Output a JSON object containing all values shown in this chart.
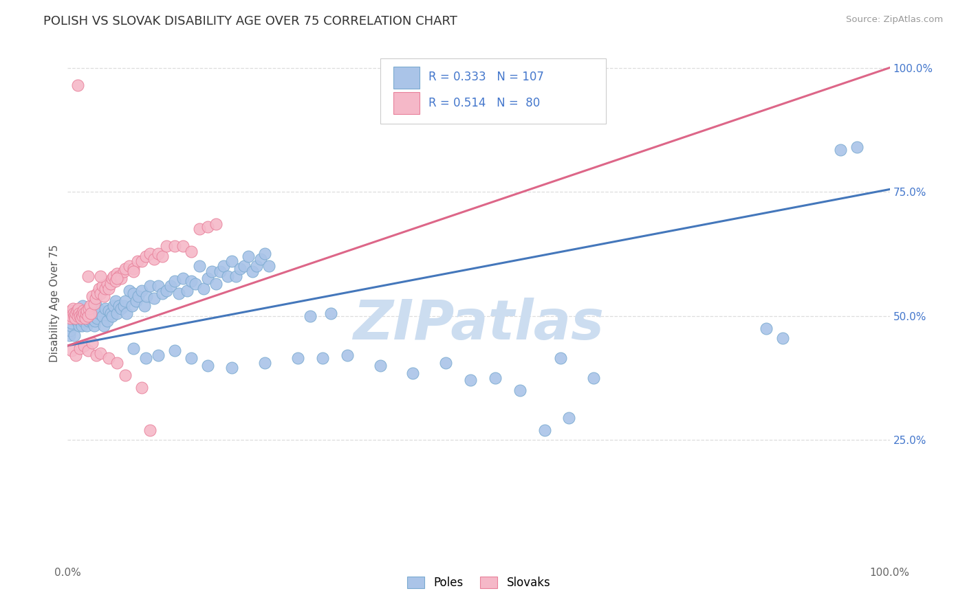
{
  "title": "POLISH VS SLOVAK DISABILITY AGE OVER 75 CORRELATION CHART",
  "source": "Source: ZipAtlas.com",
  "ylabel": "Disability Age Over 75",
  "poles_R": 0.333,
  "poles_N": 107,
  "slovaks_R": 0.514,
  "slovaks_N": 80,
  "poles_color": "#aac4e8",
  "slovaks_color": "#f5b8c8",
  "poles_edge_color": "#7aaad0",
  "slovaks_edge_color": "#e8809a",
  "poles_line_color": "#4477bb",
  "slovaks_line_color": "#dd6688",
  "title_color": "#333333",
  "right_axis_color": "#4477cc",
  "watermark_color": "#ccddf0",
  "background_color": "#ffffff",
  "grid_color": "#dddddd",
  "poles_trendline": [
    0.0,
    0.44,
    1.0,
    0.755
  ],
  "slovaks_trendline": [
    0.0,
    0.44,
    1.0,
    1.0
  ],
  "xlim": [
    0.0,
    1.0
  ],
  "ylim": [
    0.0,
    1.05
  ],
  "ytick_positions": [
    0.0,
    0.25,
    0.5,
    0.75,
    1.0
  ],
  "right_ytick_labels": [
    "",
    "25.0%",
    "50.0%",
    "75.0%",
    "100.0%"
  ],
  "xtick_positions": [
    0.0,
    1.0
  ],
  "xtick_labels": [
    "0.0%",
    "100.0%"
  ],
  "poles_scatter": [
    [
      0.002,
      0.46
    ],
    [
      0.003,
      0.47
    ],
    [
      0.004,
      0.48
    ],
    [
      0.005,
      0.485
    ],
    [
      0.006,
      0.5
    ],
    [
      0.007,
      0.495
    ],
    [
      0.008,
      0.46
    ],
    [
      0.009,
      0.51
    ],
    [
      0.01,
      0.505
    ],
    [
      0.011,
      0.49
    ],
    [
      0.012,
      0.5
    ],
    [
      0.013,
      0.51
    ],
    [
      0.014,
      0.48
    ],
    [
      0.015,
      0.49
    ],
    [
      0.016,
      0.5
    ],
    [
      0.017,
      0.48
    ],
    [
      0.018,
      0.52
    ],
    [
      0.019,
      0.49
    ],
    [
      0.02,
      0.5
    ],
    [
      0.021,
      0.51
    ],
    [
      0.022,
      0.495
    ],
    [
      0.023,
      0.48
    ],
    [
      0.025,
      0.505
    ],
    [
      0.026,
      0.49
    ],
    [
      0.027,
      0.5
    ],
    [
      0.028,
      0.51
    ],
    [
      0.029,
      0.49
    ],
    [
      0.03,
      0.505
    ],
    [
      0.032,
      0.48
    ],
    [
      0.033,
      0.49
    ],
    [
      0.034,
      0.5
    ],
    [
      0.035,
      0.52
    ],
    [
      0.036,
      0.495
    ],
    [
      0.038,
      0.505
    ],
    [
      0.04,
      0.51
    ],
    [
      0.042,
      0.5
    ],
    [
      0.044,
      0.48
    ],
    [
      0.046,
      0.515
    ],
    [
      0.048,
      0.49
    ],
    [
      0.05,
      0.51
    ],
    [
      0.052,
      0.505
    ],
    [
      0.054,
      0.5
    ],
    [
      0.056,
      0.52
    ],
    [
      0.058,
      0.53
    ],
    [
      0.06,
      0.505
    ],
    [
      0.062,
      0.52
    ],
    [
      0.065,
      0.515
    ],
    [
      0.068,
      0.52
    ],
    [
      0.07,
      0.53
    ],
    [
      0.072,
      0.505
    ],
    [
      0.075,
      0.55
    ],
    [
      0.078,
      0.52
    ],
    [
      0.08,
      0.545
    ],
    [
      0.083,
      0.53
    ],
    [
      0.086,
      0.54
    ],
    [
      0.09,
      0.55
    ],
    [
      0.093,
      0.52
    ],
    [
      0.096,
      0.54
    ],
    [
      0.1,
      0.56
    ],
    [
      0.105,
      0.535
    ],
    [
      0.11,
      0.56
    ],
    [
      0.115,
      0.545
    ],
    [
      0.12,
      0.55
    ],
    [
      0.125,
      0.56
    ],
    [
      0.13,
      0.57
    ],
    [
      0.135,
      0.545
    ],
    [
      0.14,
      0.575
    ],
    [
      0.145,
      0.55
    ],
    [
      0.15,
      0.57
    ],
    [
      0.155,
      0.565
    ],
    [
      0.16,
      0.6
    ],
    [
      0.165,
      0.555
    ],
    [
      0.17,
      0.575
    ],
    [
      0.175,
      0.59
    ],
    [
      0.18,
      0.565
    ],
    [
      0.185,
      0.59
    ],
    [
      0.19,
      0.6
    ],
    [
      0.195,
      0.58
    ],
    [
      0.2,
      0.61
    ],
    [
      0.205,
      0.58
    ],
    [
      0.21,
      0.595
    ],
    [
      0.215,
      0.6
    ],
    [
      0.22,
      0.62
    ],
    [
      0.225,
      0.59
    ],
    [
      0.23,
      0.6
    ],
    [
      0.235,
      0.615
    ],
    [
      0.24,
      0.625
    ],
    [
      0.245,
      0.6
    ],
    [
      0.08,
      0.435
    ],
    [
      0.095,
      0.415
    ],
    [
      0.11,
      0.42
    ],
    [
      0.13,
      0.43
    ],
    [
      0.15,
      0.415
    ],
    [
      0.17,
      0.4
    ],
    [
      0.2,
      0.395
    ],
    [
      0.24,
      0.405
    ],
    [
      0.28,
      0.415
    ],
    [
      0.31,
      0.415
    ],
    [
      0.34,
      0.42
    ],
    [
      0.38,
      0.4
    ],
    [
      0.42,
      0.385
    ],
    [
      0.46,
      0.405
    ],
    [
      0.49,
      0.37
    ],
    [
      0.52,
      0.375
    ],
    [
      0.55,
      0.35
    ],
    [
      0.6,
      0.415
    ],
    [
      0.64,
      0.375
    ],
    [
      0.58,
      0.27
    ],
    [
      0.61,
      0.295
    ],
    [
      0.85,
      0.475
    ],
    [
      0.87,
      0.455
    ],
    [
      0.96,
      0.84
    ],
    [
      0.94,
      0.835
    ],
    [
      0.295,
      0.5
    ],
    [
      0.32,
      0.505
    ]
  ],
  "slovaks_scatter": [
    [
      0.002,
      0.5
    ],
    [
      0.003,
      0.495
    ],
    [
      0.004,
      0.51
    ],
    [
      0.005,
      0.5
    ],
    [
      0.006,
      0.515
    ],
    [
      0.007,
      0.505
    ],
    [
      0.008,
      0.5
    ],
    [
      0.009,
      0.495
    ],
    [
      0.01,
      0.505
    ],
    [
      0.011,
      0.51
    ],
    [
      0.012,
      0.5
    ],
    [
      0.013,
      0.515
    ],
    [
      0.014,
      0.505
    ],
    [
      0.015,
      0.5
    ],
    [
      0.016,
      0.495
    ],
    [
      0.017,
      0.505
    ],
    [
      0.018,
      0.5
    ],
    [
      0.019,
      0.51
    ],
    [
      0.02,
      0.505
    ],
    [
      0.021,
      0.495
    ],
    [
      0.022,
      0.505
    ],
    [
      0.023,
      0.51
    ],
    [
      0.025,
      0.5
    ],
    [
      0.026,
      0.515
    ],
    [
      0.027,
      0.52
    ],
    [
      0.028,
      0.505
    ],
    [
      0.03,
      0.54
    ],
    [
      0.032,
      0.525
    ],
    [
      0.034,
      0.535
    ],
    [
      0.036,
      0.545
    ],
    [
      0.038,
      0.555
    ],
    [
      0.04,
      0.545
    ],
    [
      0.042,
      0.56
    ],
    [
      0.044,
      0.54
    ],
    [
      0.046,
      0.555
    ],
    [
      0.048,
      0.565
    ],
    [
      0.05,
      0.555
    ],
    [
      0.052,
      0.565
    ],
    [
      0.054,
      0.575
    ],
    [
      0.056,
      0.58
    ],
    [
      0.058,
      0.57
    ],
    [
      0.06,
      0.585
    ],
    [
      0.062,
      0.58
    ],
    [
      0.065,
      0.575
    ],
    [
      0.068,
      0.59
    ],
    [
      0.07,
      0.595
    ],
    [
      0.075,
      0.6
    ],
    [
      0.08,
      0.595
    ],
    [
      0.085,
      0.61
    ],
    [
      0.09,
      0.61
    ],
    [
      0.095,
      0.62
    ],
    [
      0.1,
      0.625
    ],
    [
      0.105,
      0.615
    ],
    [
      0.11,
      0.625
    ],
    [
      0.115,
      0.62
    ],
    [
      0.12,
      0.64
    ],
    [
      0.13,
      0.64
    ],
    [
      0.14,
      0.64
    ],
    [
      0.15,
      0.63
    ],
    [
      0.16,
      0.675
    ],
    [
      0.17,
      0.68
    ],
    [
      0.18,
      0.685
    ],
    [
      0.005,
      0.43
    ],
    [
      0.01,
      0.42
    ],
    [
      0.015,
      0.435
    ],
    [
      0.02,
      0.44
    ],
    [
      0.025,
      0.43
    ],
    [
      0.03,
      0.445
    ],
    [
      0.035,
      0.42
    ],
    [
      0.04,
      0.425
    ],
    [
      0.05,
      0.415
    ],
    [
      0.06,
      0.405
    ],
    [
      0.07,
      0.38
    ],
    [
      0.09,
      0.355
    ],
    [
      0.1,
      0.27
    ],
    [
      0.025,
      0.58
    ],
    [
      0.04,
      0.58
    ],
    [
      0.06,
      0.575
    ],
    [
      0.08,
      0.59
    ],
    [
      0.012,
      0.965
    ]
  ]
}
